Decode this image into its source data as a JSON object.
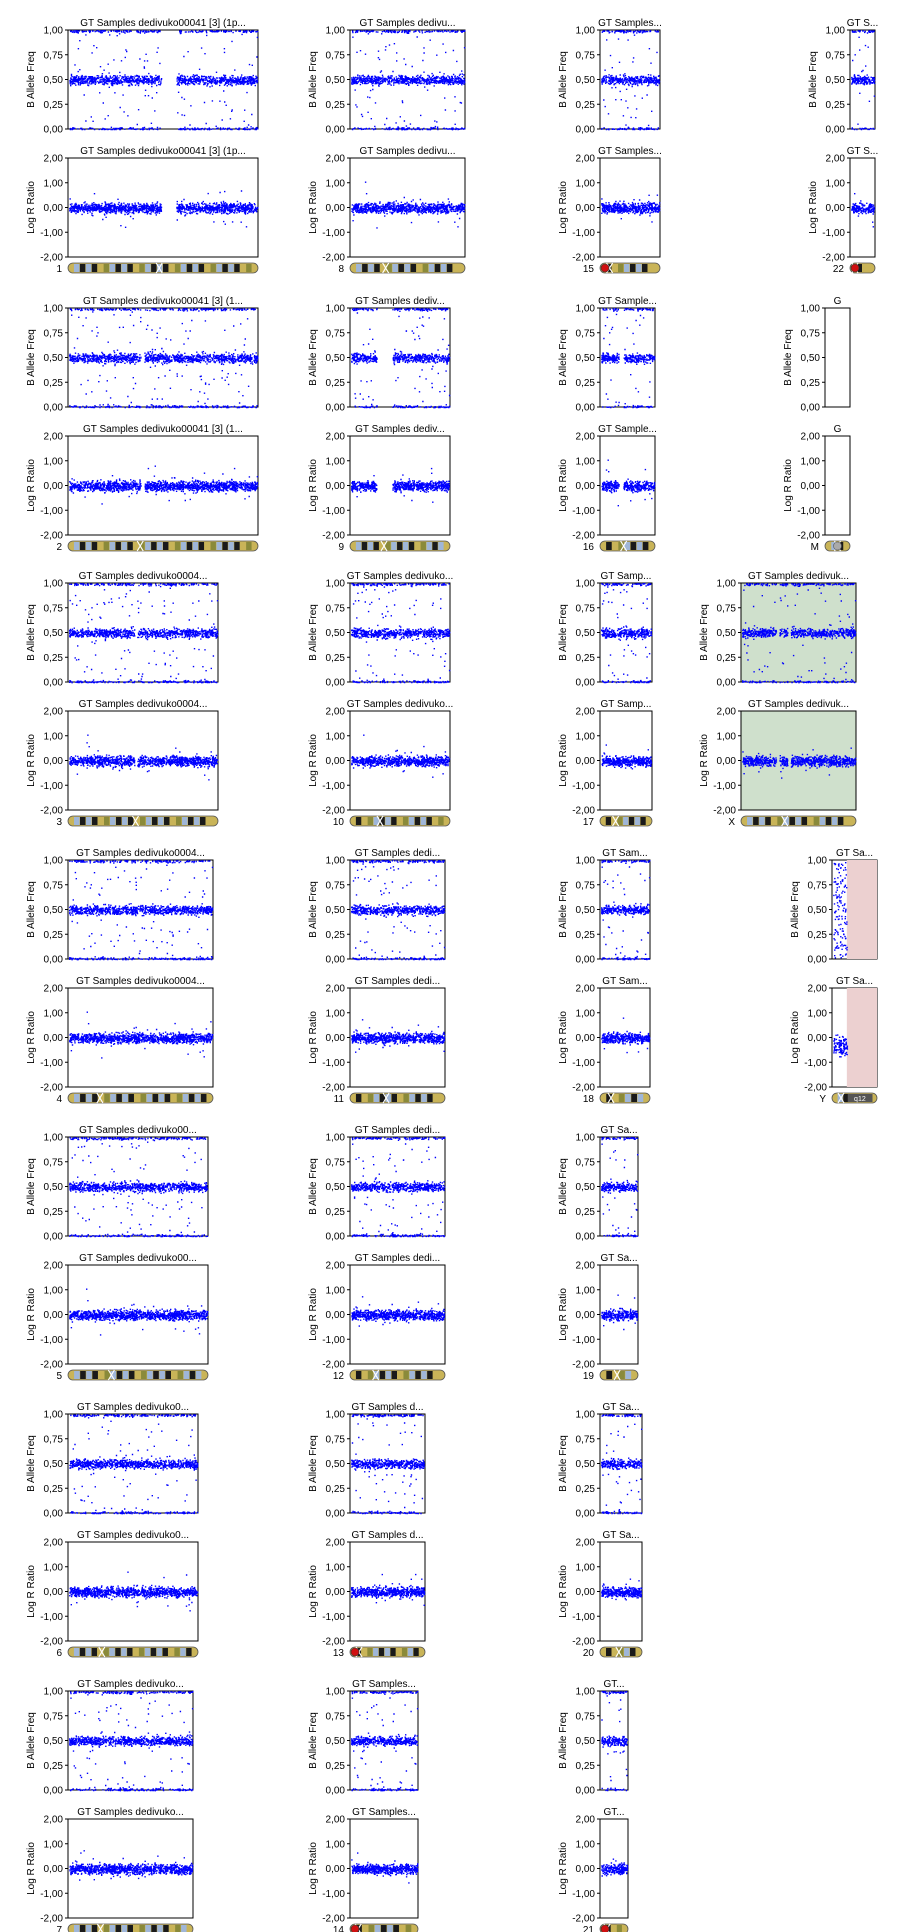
{
  "colors": {
    "points": "#0000ff",
    "frame": "#000000",
    "background": "#ffffff",
    "shade_green": "#cfe0cc",
    "shade_pink": "#ecd0d0",
    "band_light": "#9fb6d8",
    "band_gold": "#c9b458",
    "band_dark": "#1a1a1a",
    "band_olive": "#8a8a3a",
    "centromere_red": "#d01010"
  },
  "labels": {
    "baf_ylabel": "B Allele Freq",
    "lrr_ylabel": "Log R Ratio",
    "baf_ticks": [
      "1,00",
      "0,75",
      "0,50",
      "0,25",
      "0,00"
    ],
    "lrr_ticks": [
      "2,00",
      "1,00",
      "0,00",
      "-1,00",
      "-2,00"
    ]
  },
  "chart_data": {
    "type": "scatter",
    "baf_ylim": [
      0,
      1
    ],
    "lrr_ylim": [
      -2,
      2
    ],
    "panels": [
      {
        "chromosome": "1",
        "title": "GT Samples dedivuko00041 [3]  (1p...",
        "title2": "GT Samples dedivuko00041 [3]  (1p..."
      },
      {
        "chromosome": "2",
        "title": "GT Samples dedivuko00041 [3]  (1...",
        "title2": "GT Samples dedivuko00041 [3]  (1..."
      },
      {
        "chromosome": "3",
        "title": "GT Samples dedivuko0004...",
        "title2": "GT Samples dedivuko0004..."
      },
      {
        "chromosome": "4",
        "title": "GT Samples dedivuko0004...",
        "title2": "GT Samples dedivuko0004..."
      },
      {
        "chromosome": "5",
        "title": "GT Samples dedivuko00...",
        "title2": "GT Samples dedivuko00..."
      },
      {
        "chromosome": "6",
        "title": "GT Samples dedivuko0...",
        "title2": "GT Samples dedivuko0..."
      },
      {
        "chromosome": "7",
        "title": "GT Samples dedivuko...",
        "title2": "GT Samples dedivuko..."
      },
      {
        "chromosome": "8",
        "title": "GT Samples dedivu...",
        "title2": "GT Samples dedivu..."
      },
      {
        "chromosome": "9",
        "title": "GT Samples dediv...",
        "title2": "GT Samples dediv..."
      },
      {
        "chromosome": "10",
        "title": "GT Samples dedivuko...",
        "title2": "GT Samples dedivuko..."
      },
      {
        "chromosome": "11",
        "title": "GT Samples dedi...",
        "title2": "GT Samples dedi..."
      },
      {
        "chromosome": "12",
        "title": "GT Samples dedi...",
        "title2": "GT Samples dedi..."
      },
      {
        "chromosome": "13",
        "title": "GT Samples d...",
        "title2": "GT Samples d..."
      },
      {
        "chromosome": "14",
        "title": "GT Samples...",
        "title2": "GT Samples..."
      },
      {
        "chromosome": "15",
        "title": "GT Samples...",
        "title2": "GT Samples..."
      },
      {
        "chromosome": "16",
        "title": "GT Sample...",
        "title2": "GT Sample..."
      },
      {
        "chromosome": "17",
        "title": "GT Samp...",
        "title2": "GT Samp..."
      },
      {
        "chromosome": "18",
        "title": "GT Sam...",
        "title2": "GT Sam..."
      },
      {
        "chromosome": "19",
        "title": "GT Sa...",
        "title2": "GT Sa..."
      },
      {
        "chromosome": "20",
        "title": "GT Sa...",
        "title2": "GT Sa..."
      },
      {
        "chromosome": "21",
        "title": "GT...",
        "title2": "GT..."
      },
      {
        "chromosome": "22",
        "title": "GT S...",
        "title2": "GT S..."
      },
      {
        "chromosome": "X",
        "title": "GT Samples dedivuk...",
        "title2": "GT Samples dedivuk..."
      },
      {
        "chromosome": "Y",
        "title": "GT Sa...",
        "title2": "GT Sa..."
      },
      {
        "chromosome": "M",
        "title": "G",
        "title2": "G"
      }
    ],
    "ideogram_notes": {
      "Y": "q12"
    }
  }
}
